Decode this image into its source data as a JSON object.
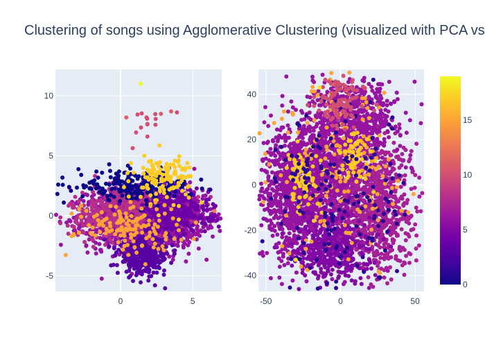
{
  "title": "Clustering of songs using Agglomerative Clustering (visualized with PCA vs t-SNE)",
  "colors": {
    "plot_bg": "#e5ecf6",
    "grid": "#ffffff",
    "text": "#2a3f5f",
    "colorscale": [
      "#0d0887",
      "#46039f",
      "#7201a8",
      "#9c179e",
      "#bd3786",
      "#d8576b",
      "#ed7953",
      "#fb9f3a",
      "#fdca26",
      "#f0f921"
    ]
  },
  "chart_data": [
    {
      "type": "scatter",
      "title": "",
      "xlabel": "",
      "ylabel": "",
      "xlim": [
        -4.5,
        7
      ],
      "ylim": [
        -6.3,
        12.2
      ],
      "x_ticks": [
        0,
        5
      ],
      "y_ticks": [
        -5,
        0,
        5,
        10
      ],
      "grid": true,
      "clusters": [
        {
          "label": 6,
          "cx": 1.8,
          "cy": -0.2,
          "sx": 2.0,
          "sy": 1.2,
          "n": 1800
        },
        {
          "label": 8,
          "cx": 0.5,
          "cy": 0.3,
          "sx": 2.0,
          "sy": 1.1,
          "n": 500
        },
        {
          "label": 4,
          "cx": 3.5,
          "cy": 0.3,
          "sx": 1.3,
          "sy": 0.9,
          "n": 400
        },
        {
          "label": 3,
          "cx": 1.6,
          "cy": -3.3,
          "sx": 0.9,
          "sy": 0.8,
          "n": 350
        },
        {
          "label": 0,
          "cx": 1.0,
          "cy": 2.5,
          "sx": 2.0,
          "sy": 0.6,
          "n": 220
        },
        {
          "label": 17,
          "cx": 3.0,
          "cy": 3.2,
          "sx": 1.0,
          "sy": 1.0,
          "n": 120
        },
        {
          "label": 15,
          "cx": 0.5,
          "cy": -0.8,
          "sx": 1.8,
          "sy": 1.0,
          "n": 140
        },
        {
          "label": 10,
          "cx": 2.0,
          "cy": 7.5,
          "sx": 0.9,
          "sy": 0.7,
          "n": 14
        }
      ],
      "outliers": [
        {
          "x": 1.4,
          "y": 11.0,
          "label": 19
        },
        {
          "x": 6.5,
          "y": 0.4,
          "label": 13
        },
        {
          "x": 3.5,
          "y": 8.7,
          "label": 11
        },
        {
          "x": 2.8,
          "y": 8.5,
          "label": 11
        },
        {
          "x": 0.4,
          "y": 8.2,
          "label": 11
        }
      ]
    },
    {
      "type": "scatter",
      "title": "",
      "xlabel": "",
      "ylabel": "",
      "xlim": [
        -55,
        56
      ],
      "ylim": [
        -47,
        51
      ],
      "x_ticks": [
        -50,
        0,
        50
      ],
      "y_ticks": [
        -40,
        -20,
        0,
        20,
        40
      ],
      "grid": true,
      "clusters": [
        {
          "label": 6,
          "cx": -8,
          "cy": 2,
          "sx": 17,
          "sy": 16,
          "n": 1400
        },
        {
          "label": 7,
          "cx": 25,
          "cy": -8,
          "sx": 12,
          "sy": 15,
          "n": 700
        },
        {
          "label": 6,
          "cx": -32,
          "cy": -5,
          "sx": 10,
          "sy": 14,
          "n": 600
        },
        {
          "label": 6,
          "cx": 10,
          "cy": 30,
          "sx": 14,
          "sy": 8,
          "n": 500
        },
        {
          "label": 5,
          "cx": -5,
          "cy": -28,
          "sx": 12,
          "sy": 7,
          "n": 400
        },
        {
          "label": 15,
          "cx": 0,
          "cy": 10,
          "sx": 22,
          "sy": 22,
          "n": 180
        },
        {
          "label": 17,
          "cx": -25,
          "cy": 4,
          "sx": 6,
          "sy": 7,
          "n": 80
        },
        {
          "label": 17,
          "cx": 10,
          "cy": 12,
          "sx": 5,
          "sy": 6,
          "n": 60
        },
        {
          "label": 1,
          "cx": 0,
          "cy": -5,
          "sx": 25,
          "sy": 22,
          "n": 180
        },
        {
          "label": 10,
          "cx": 0,
          "cy": 35,
          "sx": 8,
          "sy": 6,
          "n": 100
        }
      ],
      "outliers": [
        {
          "x": -30,
          "y": -33,
          "label": 18
        },
        {
          "x": -14,
          "y": 43,
          "label": 18
        },
        {
          "x": 49,
          "y": -4,
          "label": 15
        }
      ]
    }
  ],
  "colorbar": {
    "min": 0,
    "max": 19,
    "ticks": [
      0,
      5,
      10,
      15
    ]
  }
}
